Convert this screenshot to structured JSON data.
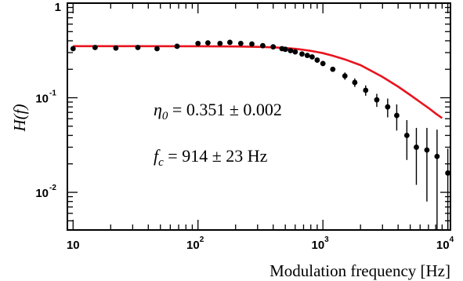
{
  "chart_data": {
    "type": "scatter",
    "xlabel": "Modulation frequency [Hz]",
    "ylabel": "H(f)",
    "xscale": "log",
    "yscale": "log",
    "xlim": [
      9,
      10500
    ],
    "ylim": [
      0.004,
      1
    ],
    "x_ticks": [
      {
        "value": 10,
        "base": "10",
        "exp": ""
      },
      {
        "value": 100,
        "base": "10",
        "exp": "2"
      },
      {
        "value": 1000,
        "base": "10",
        "exp": "3"
      },
      {
        "value": 10000,
        "base": "10",
        "exp": "4"
      }
    ],
    "y_ticks": [
      {
        "value": 0.01,
        "base": "10",
        "exp": "-2"
      },
      {
        "value": 0.1,
        "base": "10",
        "exp": "-1"
      },
      {
        "value": 1,
        "base": "1",
        "exp": ""
      }
    ],
    "series": [
      {
        "kind": "points_with_errors",
        "color": "#000000",
        "points": [
          {
            "x": 10,
            "y": 0.33,
            "err": 0.012
          },
          {
            "x": 15,
            "y": 0.34,
            "err": 0.01
          },
          {
            "x": 22,
            "y": 0.335,
            "err": 0.01
          },
          {
            "x": 33,
            "y": 0.34,
            "err": 0.01
          },
          {
            "x": 47,
            "y": 0.33,
            "err": 0.01
          },
          {
            "x": 68,
            "y": 0.35,
            "err": 0.01
          },
          {
            "x": 100,
            "y": 0.375,
            "err": 0.01
          },
          {
            "x": 120,
            "y": 0.38,
            "err": 0.01
          },
          {
            "x": 150,
            "y": 0.375,
            "err": 0.01
          },
          {
            "x": 180,
            "y": 0.385,
            "err": 0.01
          },
          {
            "x": 220,
            "y": 0.375,
            "err": 0.01
          },
          {
            "x": 270,
            "y": 0.37,
            "err": 0.01
          },
          {
            "x": 330,
            "y": 0.355,
            "err": 0.01
          },
          {
            "x": 400,
            "y": 0.345,
            "err": 0.01
          },
          {
            "x": 470,
            "y": 0.33,
            "err": 0.01
          },
          {
            "x": 500,
            "y": 0.325,
            "err": 0.01
          },
          {
            "x": 550,
            "y": 0.315,
            "err": 0.01
          },
          {
            "x": 600,
            "y": 0.305,
            "err": 0.01
          },
          {
            "x": 680,
            "y": 0.29,
            "err": 0.01
          },
          {
            "x": 750,
            "y": 0.28,
            "err": 0.01
          },
          {
            "x": 820,
            "y": 0.27,
            "err": 0.01
          },
          {
            "x": 900,
            "y": 0.25,
            "err": 0.01
          },
          {
            "x": 1000,
            "y": 0.23,
            "err": 0.012
          },
          {
            "x": 1200,
            "y": 0.2,
            "err": 0.012
          },
          {
            "x": 1500,
            "y": 0.17,
            "err": 0.015
          },
          {
            "x": 1800,
            "y": 0.145,
            "err": 0.015
          },
          {
            "x": 2200,
            "y": 0.12,
            "err": 0.015
          },
          {
            "x": 2700,
            "y": 0.095,
            "err": 0.015
          },
          {
            "x": 3300,
            "y": 0.08,
            "err": 0.018
          },
          {
            "x": 3900,
            "y": 0.065,
            "err": 0.02
          },
          {
            "x": 4700,
            "y": 0.04,
            "err": 0.018
          },
          {
            "x": 5600,
            "y": 0.03,
            "err": 0.018
          },
          {
            "x": 6800,
            "y": 0.028,
            "err": 0.02
          },
          {
            "x": 8200,
            "y": 0.024,
            "err": 0.022
          },
          {
            "x": 10000,
            "y": 0.016,
            "err": 0.013
          }
        ]
      },
      {
        "kind": "fit_line",
        "color": "#e8141e",
        "x": [
          10,
          30,
          100,
          200,
          300,
          400,
          500,
          600,
          700,
          800,
          914,
          1000,
          1200,
          1500,
          2000,
          3000,
          4000,
          5000,
          6000,
          7000,
          8000,
          9000
        ],
        "y": [
          0.351,
          0.351,
          0.35,
          0.348,
          0.345,
          0.341,
          0.335,
          0.329,
          0.321,
          0.313,
          0.303,
          0.296,
          0.278,
          0.254,
          0.221,
          0.166,
          0.131,
          0.107,
          0.09,
          0.078,
          0.068,
          0.061
        ]
      }
    ],
    "annotations": [
      {
        "label": "η0",
        "text": "= 0.351 ± 0.002"
      },
      {
        "label": "f",
        "sub": "c",
        "text": "= 914 ± 23 Hz"
      }
    ]
  }
}
